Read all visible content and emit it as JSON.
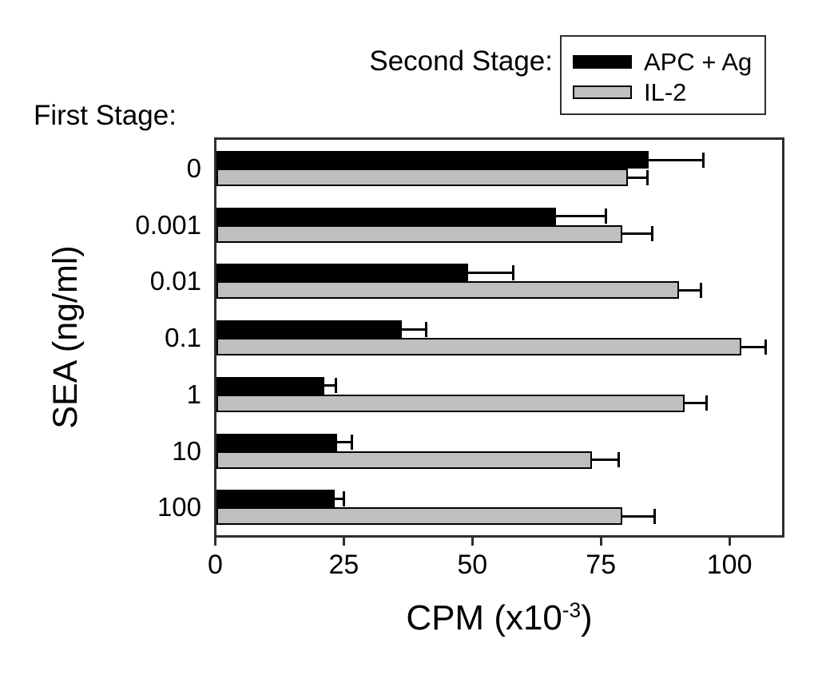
{
  "figure": {
    "second_stage_label": "Second Stage:",
    "first_stage_label": "First Stage:"
  },
  "chart_data": {
    "type": "bar",
    "orientation": "horizontal",
    "title": "",
    "xlabel": "CPM (x10^-3)",
    "xlabel_parts": {
      "prefix": "CPM (x10",
      "exponent": "-3",
      "suffix": ")"
    },
    "ylabel": "SEA (ng/ml)",
    "categories": [
      "0",
      "0.001",
      "0.01",
      "0.1",
      "1",
      "10",
      "100"
    ],
    "series": [
      {
        "name": "APC + Ag",
        "color": "#000000",
        "values": [
          84,
          66,
          49,
          36,
          21,
          23.5,
          23
        ],
        "errors": [
          11,
          10,
          9,
          5,
          2.5,
          3,
          2
        ]
      },
      {
        "name": "IL-2",
        "color": "#bfbfbf",
        "values": [
          80,
          79,
          90,
          102,
          91,
          73,
          79
        ],
        "errors": [
          4,
          6,
          4.5,
          5,
          4.5,
          5.5,
          6.5
        ]
      }
    ],
    "xlim": [
      0,
      110
    ],
    "xticks": [
      0,
      25,
      50,
      75,
      100
    ],
    "grid": false,
    "legend_position": "top-right",
    "error_bars": "positive-only",
    "bar_outline_color": "#000000",
    "frame_color": "#2e2e2e"
  }
}
